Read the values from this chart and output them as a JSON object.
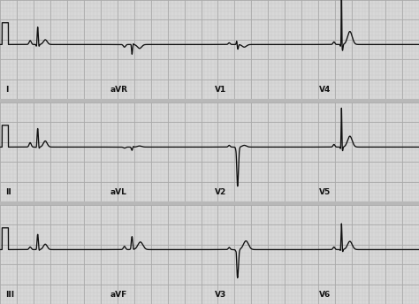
{
  "bg_color": "#b8b8b8",
  "strip_bg": "#d8d8d8",
  "grid_major_color": "#aaaaaa",
  "grid_minor_color": "#c4c4c4",
  "line_color": "#111111",
  "label_color": "#111111",
  "figsize": [
    4.74,
    3.44
  ],
  "dpi": 100,
  "row_labels": [
    [
      "I",
      "aVR",
      "V1",
      "V4"
    ],
    [
      "II",
      "aVL",
      "V2",
      "V5"
    ],
    [
      "III",
      "aVF",
      "V3",
      "V6"
    ]
  ],
  "leads": {
    "I": {
      "cal": true,
      "beats": 1
    },
    "aVR": {
      "cal": false,
      "beats": 1
    },
    "V1": {
      "cal": false,
      "beats": 1
    },
    "V4": {
      "cal": false,
      "beats": 1
    },
    "II": {
      "cal": true,
      "beats": 1
    },
    "aVL": {
      "cal": false,
      "beats": 1
    },
    "V2": {
      "cal": false,
      "beats": 1
    },
    "V5": {
      "cal": false,
      "beats": 1
    },
    "III": {
      "cal": true,
      "beats": 1
    },
    "aVF": {
      "cal": false,
      "beats": 1
    },
    "V3": {
      "cal": false,
      "beats": 1
    },
    "V6": {
      "cal": false,
      "beats": 1
    }
  }
}
